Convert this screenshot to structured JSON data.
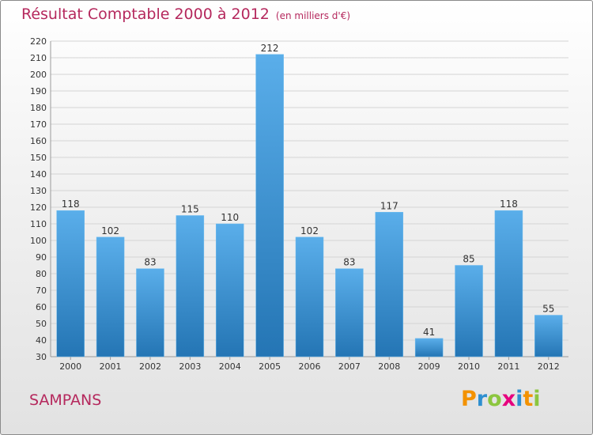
{
  "title": "Résultat Comptable 2000 à 2012",
  "subtitle": "(en milliers d'€)",
  "city": "SAMPANS",
  "logo": {
    "letters": [
      "P",
      "r",
      "o",
      "x",
      "i",
      "t",
      "i"
    ],
    "colors": [
      "#f39200",
      "#2e8fd0",
      "#8cc63f",
      "#e6007e",
      "#2e8fd0",
      "#f39200",
      "#8cc63f"
    ]
  },
  "colors": {
    "bar_light": "#5aaeea",
    "bar_dark": "#2475b4",
    "title": "#b5285d"
  },
  "chart_data": {
    "type": "bar",
    "title": "Résultat Comptable 2000 à 2012",
    "subtitle": "(en milliers d'€)",
    "categories": [
      "2000",
      "2001",
      "2002",
      "2003",
      "2004",
      "2005",
      "2006",
      "2007",
      "2008",
      "2009",
      "2010",
      "2011",
      "2012"
    ],
    "values": [
      118,
      102,
      83,
      115,
      110,
      212,
      102,
      83,
      117,
      41,
      85,
      118,
      55
    ],
    "ylim": [
      30,
      220
    ],
    "yticks": [
      30,
      40,
      50,
      60,
      70,
      80,
      90,
      100,
      110,
      120,
      130,
      140,
      150,
      160,
      170,
      180,
      190,
      200,
      210,
      220
    ],
    "xlabel": "",
    "ylabel": "",
    "grid": true
  }
}
